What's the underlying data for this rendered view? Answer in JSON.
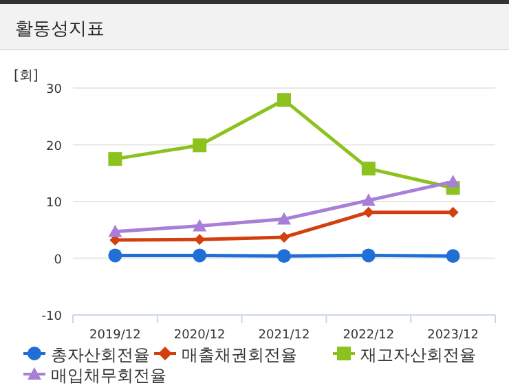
{
  "chart_data": {
    "type": "line",
    "title": "활동성지표",
    "ylabel": "[회]",
    "categories": [
      "2019/12",
      "2020/12",
      "2021/12",
      "2022/12",
      "2023/12"
    ],
    "series": [
      {
        "name": "총자산회전율",
        "color": "#1f6fd6",
        "values": [
          0.5,
          0.5,
          0.4,
          0.5,
          0.4
        ],
        "marker": "circle"
      },
      {
        "name": "매출채권회전율",
        "color": "#d2400f",
        "values": [
          3.2,
          3.3,
          3.7,
          8.1,
          8.1
        ],
        "marker": "diamond"
      },
      {
        "name": "재고자산회전율",
        "color": "#8cc21e",
        "values": [
          17.5,
          19.9,
          27.9,
          15.8,
          12.4
        ],
        "marker": "square"
      },
      {
        "name": "매입채무회전율",
        "color": "#a77fd8",
        "values": [
          4.7,
          5.7,
          6.9,
          10.2,
          13.5
        ],
        "marker": "triangle"
      }
    ],
    "ylim": [
      -10,
      30
    ],
    "yticks": [
      -10,
      0,
      10,
      20,
      30
    ],
    "grid": "y",
    "legend": "bottom"
  }
}
